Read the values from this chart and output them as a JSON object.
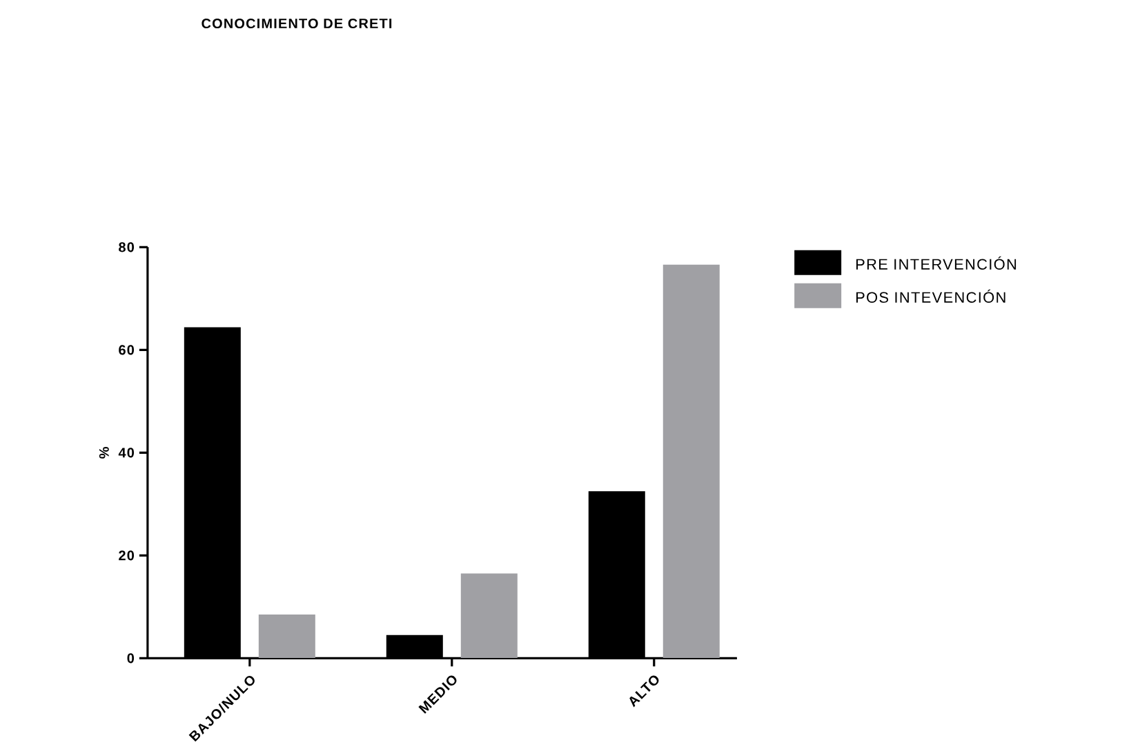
{
  "chart_data": {
    "type": "bar",
    "title": "CONOCIMIENTO DE CRETI",
    "ylabel": "%",
    "categories": [
      "BAJO/NULO",
      "MEDIO",
      "ALTO"
    ],
    "series": [
      {
        "name": "PRE INTERVENCIÓN",
        "color": "#000000",
        "values": [
          64.4,
          4.5,
          32.5
        ]
      },
      {
        "name": "POS INTEVENCIÓN",
        "color": "#a0a0a4",
        "values": [
          8.5,
          16.5,
          76.6
        ]
      }
    ],
    "ylim": [
      0,
      80
    ],
    "yticks": [
      0,
      20,
      40,
      60,
      80
    ],
    "legend": "top right"
  }
}
